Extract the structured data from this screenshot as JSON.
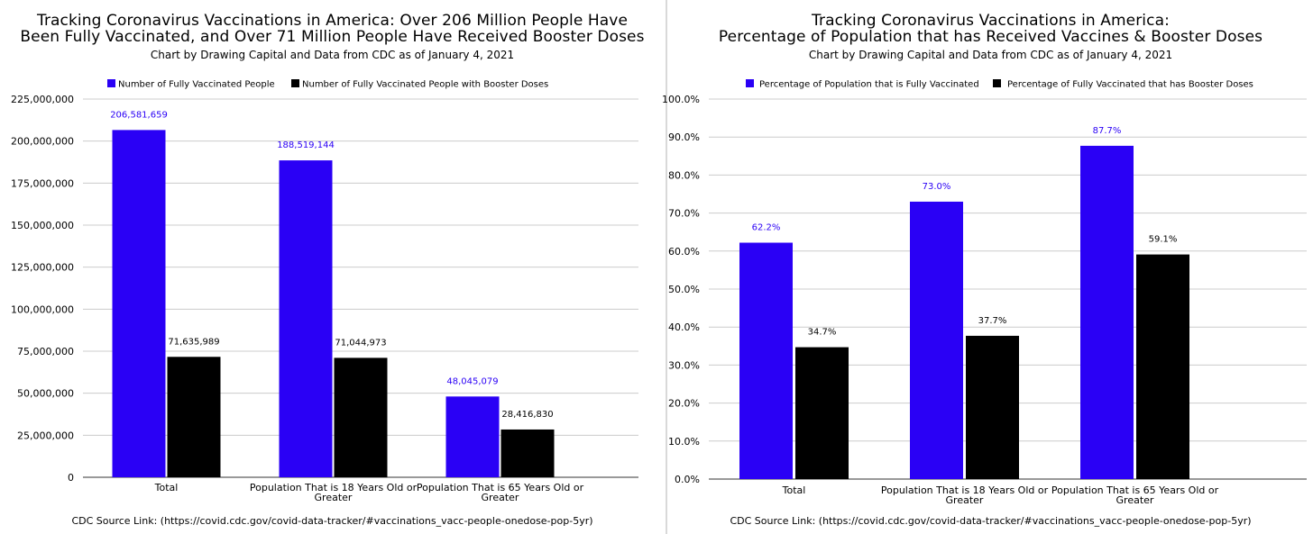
{
  "charts": [
    {
      "title_lines": [
        "Tracking Coronavirus Vaccinations in America: Over 206 Million People Have",
        "Been Fully Vaccinated, and Over 71 Million People Have Received Booster Doses"
      ],
      "subtitle": "Chart by Drawing Capital and Data from CDC as of January 4, 2021",
      "source": "CDC Source Link: (https://covid.cdc.gov/covid-data-tracker/#vaccinations_vacc-people-onedose-pop-5yr)"
    },
    {
      "title_lines": [
        "Tracking Coronavirus Vaccinations in America:",
        "Percentage of Population that has Received Vaccines & Booster Doses"
      ],
      "subtitle": "Chart by Drawing Capital and Data from CDC as of January 4, 2021",
      "source": "CDC Source Link: (https://covid.cdc.gov/covid-data-tracker/#vaccinations_vacc-people-onedose-pop-5yr)"
    }
  ],
  "chart_data": [
    {
      "type": "bar",
      "title": "Tracking Coronavirus Vaccinations in America: Over 206 Million People Have Been Fully Vaccinated, and Over 71 Million People Have Received Booster Doses",
      "subtitle": "Chart by Drawing Capital and Data from CDC as of January 4, 2021",
      "categories": [
        [
          "Total"
        ],
        [
          "Population That is 18 Years Old or",
          "Greater"
        ],
        [
          "Population That is 65 Years Old or",
          "Greater"
        ]
      ],
      "series": [
        {
          "name": "Number of Fully Vaccinated People",
          "color": "#2a00f5",
          "values": [
            206581659,
            188519144,
            48045079
          ],
          "labels": [
            "206,581,659",
            "188,519,144",
            "48,045,079"
          ]
        },
        {
          "name": "Number of Fully Vaccinated People with Booster Doses",
          "color": "#000000",
          "values": [
            71635989,
            71044973,
            28416830
          ],
          "labels": [
            "71,635,989",
            "71,044,973",
            "28,416,830"
          ]
        }
      ],
      "ylim": [
        0,
        225000000
      ],
      "yticks": [
        {
          "value": 0,
          "label": "0"
        },
        {
          "value": 25000000,
          "label": "25,000,000"
        },
        {
          "value": 50000000,
          "label": "50,000,000"
        },
        {
          "value": 75000000,
          "label": "75,000,000"
        },
        {
          "value": 100000000,
          "label": "100,000,000"
        },
        {
          "value": 125000000,
          "label": "125,000,000"
        },
        {
          "value": 150000000,
          "label": "150,000,000"
        },
        {
          "value": 175000000,
          "label": "175,000,000"
        },
        {
          "value": 200000000,
          "label": "200,000,000"
        },
        {
          "value": 225000000,
          "label": "225,000,000"
        }
      ],
      "grid": true,
      "legend_placement": "top"
    },
    {
      "type": "bar",
      "title": "Tracking Coronavirus Vaccinations in America: Percentage of Population that has Received Vaccines & Booster Doses",
      "subtitle": "Chart by Drawing Capital and Data from CDC as of January 4, 2021",
      "categories": [
        [
          "Total"
        ],
        [
          "Population That is 18 Years Old or",
          "Greater"
        ],
        [
          "Population That is 65 Years Old or",
          "Greater"
        ]
      ],
      "series": [
        {
          "name": "Percentage of Population that is Fully Vaccinated",
          "color": "#2a00f5",
          "values": [
            62.2,
            73.0,
            87.7
          ],
          "labels": [
            "62.2%",
            "73.0%",
            "87.7%"
          ]
        },
        {
          "name": "Percentage of Fully Vaccinated that has Booster Doses",
          "color": "#000000",
          "values": [
            34.7,
            37.7,
            59.1
          ],
          "labels": [
            "34.7%",
            "37.7%",
            "59.1%"
          ]
        }
      ],
      "ylim": [
        0,
        100
      ],
      "yticks": [
        {
          "value": 0,
          "label": "0.0%"
        },
        {
          "value": 10,
          "label": "10.0%"
        },
        {
          "value": 20,
          "label": "20.0%"
        },
        {
          "value": 30,
          "label": "30.0%"
        },
        {
          "value": 40,
          "label": "40.0%"
        },
        {
          "value": 50,
          "label": "50.0%"
        },
        {
          "value": 60,
          "label": "60.0%"
        },
        {
          "value": 70,
          "label": "70.0%"
        },
        {
          "value": 80,
          "label": "80.0%"
        },
        {
          "value": 90,
          "label": "90.0%"
        },
        {
          "value": 100,
          "label": "100.0%"
        }
      ],
      "grid": true,
      "legend_placement": "top"
    }
  ]
}
